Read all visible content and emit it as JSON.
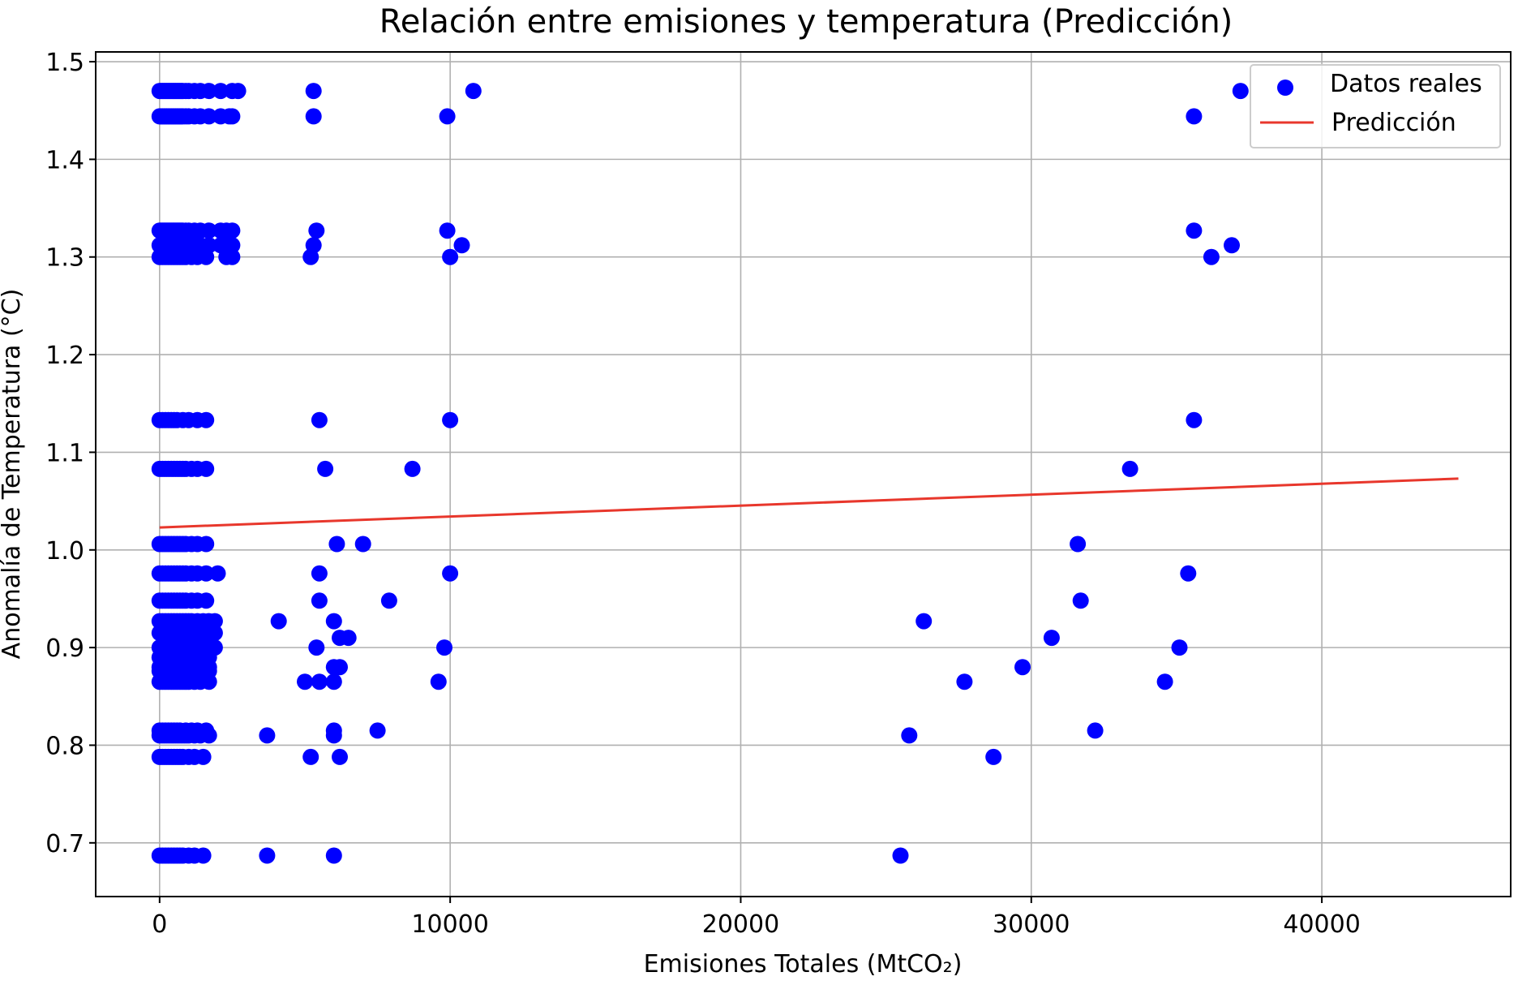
{
  "chart_data": {
    "type": "scatter",
    "title": "Relación entre emisiones y temperatura (Predicción)",
    "xlabel": "Emisiones Totales (MtCO₂)",
    "ylabel": "Anomalía de Temperatura (°C)",
    "xlim": [
      -2200,
      46500
    ],
    "ylim": [
      0.645,
      1.51
    ],
    "xticks": [
      0,
      10000,
      20000,
      30000,
      40000
    ],
    "yticks": [
      0.7,
      0.8,
      0.9,
      1.0,
      1.1,
      1.2,
      1.3,
      1.4,
      1.5
    ],
    "ytick_labels": [
      "0.7",
      "0.8",
      "0.9",
      "1.0",
      "1.1",
      "1.2",
      "1.3",
      "1.4",
      "1.5"
    ],
    "grid": true,
    "legend_position": "top-right",
    "series": [
      {
        "name": "Datos reales",
        "kind": "scatter",
        "color": "#0000ff",
        "x": [
          0,
          50,
          100,
          150,
          200,
          250,
          300,
          350,
          400,
          450,
          500,
          550,
          600,
          650,
          700,
          750,
          800,
          900,
          1000,
          1200,
          1400,
          1700,
          2100,
          2500,
          0,
          50,
          100,
          150,
          200,
          250,
          300,
          350,
          400,
          450,
          500,
          550,
          600,
          650,
          700,
          750,
          800,
          900,
          1000,
          1200,
          1400,
          1700,
          2100,
          2500,
          0,
          50,
          100,
          150,
          200,
          250,
          300,
          350,
          400,
          450,
          500,
          550,
          600,
          650,
          700,
          750,
          800,
          900,
          1000,
          1200,
          1400,
          1700,
          2100,
          2500,
          0,
          50,
          100,
          150,
          200,
          250,
          300,
          350,
          400,
          450,
          500,
          550,
          600,
          650,
          700,
          750,
          800,
          900,
          1000,
          1200,
          1400,
          1700,
          2100,
          2500,
          0,
          100,
          200,
          300,
          400,
          500,
          600,
          700,
          800,
          900,
          1100,
          1300,
          1600,
          2300,
          0,
          100,
          200,
          300,
          400,
          500,
          600,
          800,
          1000,
          1300,
          1600,
          0,
          100,
          200,
          300,
          400,
          500,
          600,
          700,
          800,
          900,
          1100,
          1300,
          1600,
          0,
          100,
          200,
          300,
          400,
          500,
          600,
          700,
          800,
          900,
          1100,
          1300,
          1600,
          2000,
          0,
          100,
          200,
          300,
          400,
          500,
          600,
          700,
          800,
          900,
          1100,
          1300,
          1600,
          0,
          100,
          200,
          300,
          400,
          500,
          600,
          700,
          800,
          900,
          1100,
          1300,
          1600,
          0,
          100,
          200,
          300,
          400,
          500,
          600,
          700,
          800,
          900,
          1000,
          1100,
          1300,
          1500,
          1700,
          1900,
          0,
          100,
          200,
          300,
          400,
          500,
          600,
          700,
          800,
          900,
          1000,
          1100,
          1300,
          1500,
          1700,
          1900,
          0,
          100,
          200,
          300,
          400,
          500,
          600,
          700,
          800,
          900,
          1000,
          1100,
          1300,
          1500,
          1700,
          1900,
          0,
          100,
          200,
          300,
          400,
          500,
          600,
          700,
          800,
          900,
          1000,
          1100,
          1300,
          1500,
          1700,
          0,
          100,
          200,
          300,
          400,
          500,
          600,
          700,
          800,
          900,
          1000,
          1100,
          1300,
          1500,
          1700,
          0,
          100,
          200,
          300,
          400,
          500,
          600,
          700,
          800,
          900,
          1000,
          1100,
          1300,
          1500,
          1700,
          0,
          100,
          200,
          300,
          400,
          500,
          600,
          700,
          800,
          900,
          1000,
          1200,
          1400,
          1700,
          0,
          100,
          200,
          300,
          400,
          500,
          600,
          700,
          900,
          1100,
          1300,
          1600,
          0,
          100,
          200,
          300,
          400,
          500,
          600,
          700,
          800,
          900,
          1000,
          1200,
          1400,
          1700,
          0,
          100,
          200,
          300,
          400,
          500,
          600,
          700,
          800,
          1000,
          1200,
          1500,
          0,
          100,
          200,
          300,
          400,
          500,
          600,
          700,
          800,
          1000,
          1200,
          1500,
          2700,
          2400,
          5300,
          5300,
          10800,
          9900,
          2300,
          2500,
          2400,
          5400,
          5300,
          5200,
          9900,
          10400,
          10000,
          5500,
          10000,
          5700,
          8700,
          6100,
          7000,
          5500,
          10000,
          5500,
          7900,
          4100,
          6000,
          6200,
          6500,
          5400,
          9800,
          5000,
          6000,
          6200,
          5500,
          6000,
          9600,
          3700,
          6000,
          6000,
          7500,
          5200,
          6200,
          3700,
          6000,
          35600,
          37200,
          35600,
          36900,
          36200,
          35600,
          33400,
          31600,
          35400,
          31700,
          26300,
          30700,
          35100,
          29700,
          27700,
          34600,
          25800,
          32200,
          28700,
          25500
        ],
        "y": [
          1.47,
          1.47,
          1.47,
          1.47,
          1.47,
          1.47,
          1.47,
          1.47,
          1.47,
          1.47,
          1.47,
          1.47,
          1.47,
          1.47,
          1.47,
          1.47,
          1.47,
          1.47,
          1.47,
          1.47,
          1.47,
          1.47,
          1.47,
          1.47,
          1.444,
          1.444,
          1.444,
          1.444,
          1.444,
          1.444,
          1.444,
          1.444,
          1.444,
          1.444,
          1.444,
          1.444,
          1.444,
          1.444,
          1.444,
          1.444,
          1.444,
          1.444,
          1.444,
          1.444,
          1.444,
          1.444,
          1.444,
          1.444,
          1.327,
          1.327,
          1.327,
          1.327,
          1.327,
          1.327,
          1.327,
          1.327,
          1.327,
          1.327,
          1.327,
          1.327,
          1.327,
          1.327,
          1.327,
          1.327,
          1.327,
          1.327,
          1.327,
          1.327,
          1.327,
          1.327,
          1.327,
          1.327,
          1.312,
          1.312,
          1.312,
          1.312,
          1.312,
          1.312,
          1.312,
          1.312,
          1.312,
          1.312,
          1.312,
          1.312,
          1.312,
          1.312,
          1.312,
          1.312,
          1.312,
          1.312,
          1.312,
          1.312,
          1.312,
          1.312,
          1.312,
          1.312,
          1.3,
          1.3,
          1.3,
          1.3,
          1.3,
          1.3,
          1.3,
          1.3,
          1.3,
          1.3,
          1.3,
          1.3,
          1.3,
          1.3,
          1.133,
          1.133,
          1.133,
          1.133,
          1.133,
          1.133,
          1.133,
          1.133,
          1.133,
          1.133,
          1.133,
          1.083,
          1.083,
          1.083,
          1.083,
          1.083,
          1.083,
          1.083,
          1.083,
          1.083,
          1.083,
          1.083,
          1.083,
          1.083,
          0.976,
          0.976,
          0.976,
          0.976,
          0.976,
          0.976,
          0.976,
          0.976,
          0.976,
          0.976,
          0.976,
          0.976,
          0.976,
          0.976,
          1.006,
          1.006,
          1.006,
          1.006,
          1.006,
          1.006,
          1.006,
          1.006,
          1.006,
          1.006,
          1.006,
          1.006,
          1.006,
          0.948,
          0.948,
          0.948,
          0.948,
          0.948,
          0.948,
          0.948,
          0.948,
          0.948,
          0.948,
          0.948,
          0.948,
          0.948,
          0.927,
          0.927,
          0.927,
          0.927,
          0.927,
          0.927,
          0.927,
          0.927,
          0.927,
          0.927,
          0.927,
          0.927,
          0.927,
          0.927,
          0.927,
          0.927,
          0.915,
          0.915,
          0.915,
          0.915,
          0.915,
          0.915,
          0.915,
          0.915,
          0.915,
          0.915,
          0.915,
          0.915,
          0.915,
          0.915,
          0.915,
          0.915,
          0.9,
          0.9,
          0.9,
          0.9,
          0.9,
          0.9,
          0.9,
          0.9,
          0.9,
          0.9,
          0.9,
          0.9,
          0.9,
          0.9,
          0.9,
          0.9,
          0.89,
          0.89,
          0.89,
          0.89,
          0.89,
          0.89,
          0.89,
          0.89,
          0.89,
          0.89,
          0.89,
          0.89,
          0.89,
          0.89,
          0.89,
          0.88,
          0.88,
          0.88,
          0.88,
          0.88,
          0.88,
          0.88,
          0.88,
          0.88,
          0.88,
          0.88,
          0.88,
          0.88,
          0.88,
          0.88,
          0.876,
          0.876,
          0.876,
          0.876,
          0.876,
          0.876,
          0.876,
          0.876,
          0.876,
          0.876,
          0.876,
          0.876,
          0.876,
          0.876,
          0.876,
          0.865,
          0.865,
          0.865,
          0.865,
          0.865,
          0.865,
          0.865,
          0.865,
          0.865,
          0.865,
          0.865,
          0.865,
          0.865,
          0.865,
          0.815,
          0.815,
          0.815,
          0.815,
          0.815,
          0.815,
          0.815,
          0.815,
          0.815,
          0.815,
          0.815,
          0.815,
          0.81,
          0.81,
          0.81,
          0.81,
          0.81,
          0.81,
          0.81,
          0.81,
          0.81,
          0.81,
          0.81,
          0.81,
          0.81,
          0.81,
          0.788,
          0.788,
          0.788,
          0.788,
          0.788,
          0.788,
          0.788,
          0.788,
          0.788,
          0.788,
          0.788,
          0.788,
          0.687,
          0.687,
          0.687,
          0.687,
          0.687,
          0.687,
          0.687,
          0.687,
          0.687,
          0.687,
          0.687,
          0.687,
          1.47,
          1.444,
          1.47,
          1.444,
          1.47,
          1.444,
          1.327,
          1.3,
          1.312,
          1.327,
          1.312,
          1.3,
          1.327,
          1.312,
          1.3,
          1.133,
          1.133,
          1.083,
          1.083,
          1.006,
          1.006,
          0.976,
          0.976,
          0.948,
          0.948,
          0.927,
          0.927,
          0.91,
          0.91,
          0.9,
          0.9,
          0.865,
          0.88,
          0.88,
          0.865,
          0.865,
          0.865,
          0.81,
          0.815,
          0.81,
          0.815,
          0.788,
          0.788,
          0.687,
          0.687,
          1.444,
          1.47,
          1.327,
          1.312,
          1.3,
          1.133,
          1.083,
          1.006,
          0.976,
          0.948,
          0.927,
          0.91,
          0.9,
          0.88,
          0.865,
          0.865,
          0.81,
          0.815,
          0.788,
          0.687
        ]
      },
      {
        "name": "Predicción",
        "kind": "line",
        "color": "#e8372c",
        "x": [
          0,
          44700
        ],
        "y": [
          1.023,
          1.073
        ]
      }
    ]
  }
}
